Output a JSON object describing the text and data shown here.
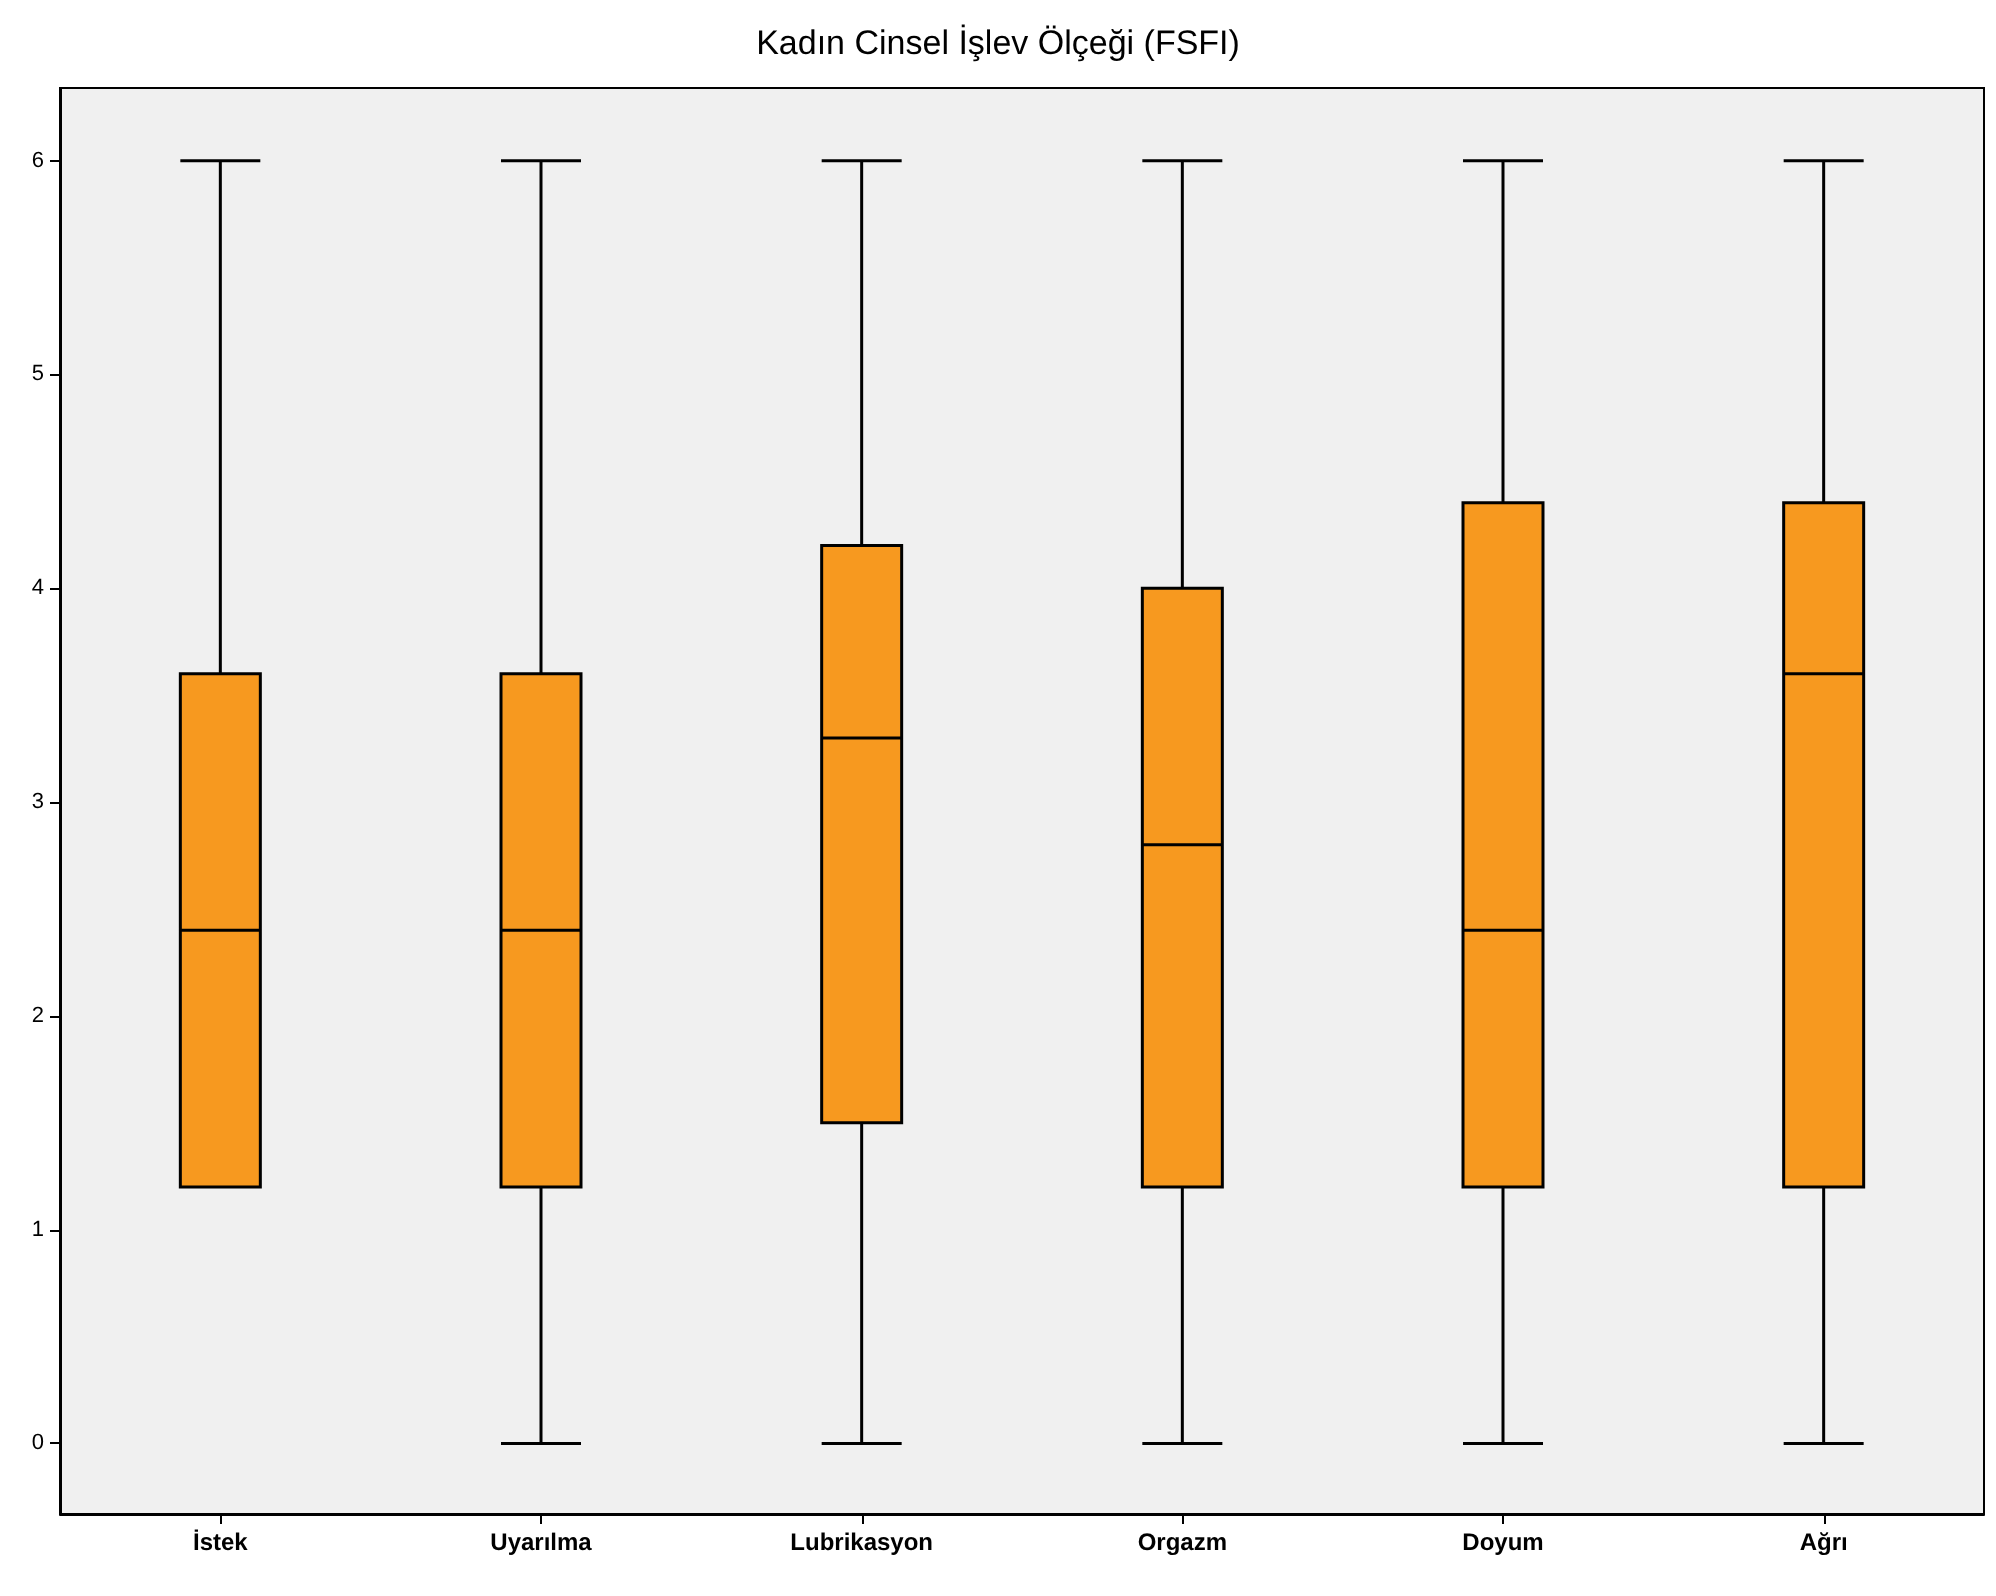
{
  "chart_data": {
    "type": "box",
    "title": "Kadın Cinsel İşlev Ölçeği (FSFI)",
    "categories": [
      "İstek",
      "Uyarılma",
      "Lubrikasyon",
      "Orgazm",
      "Doyum",
      "Ağrı"
    ],
    "series": [
      {
        "color": "#f7991f",
        "boxes": [
          {
            "low": 1.2,
            "q1": 1.2,
            "median": 2.4,
            "q3": 3.6,
            "high": 6
          },
          {
            "low": 0,
            "q1": 1.2,
            "median": 2.4,
            "q3": 3.6,
            "high": 6
          },
          {
            "low": 0,
            "q1": 1.5,
            "median": 3.3,
            "q3": 4.2,
            "high": 6
          },
          {
            "low": 0,
            "q1": 1.2,
            "median": 2.8,
            "q3": 4.0,
            "high": 6
          },
          {
            "low": 0,
            "q1": 1.2,
            "median": 2.4,
            "q3": 4.4,
            "high": 6
          },
          {
            "low": 0,
            "q1": 1.2,
            "median": 3.6,
            "q3": 4.4,
            "high": 6
          }
        ]
      }
    ],
    "ylim": [
      -0.33,
      6.34
    ],
    "yticks": [
      0,
      1,
      2,
      3,
      4,
      5,
      6
    ],
    "grid": false
  }
}
